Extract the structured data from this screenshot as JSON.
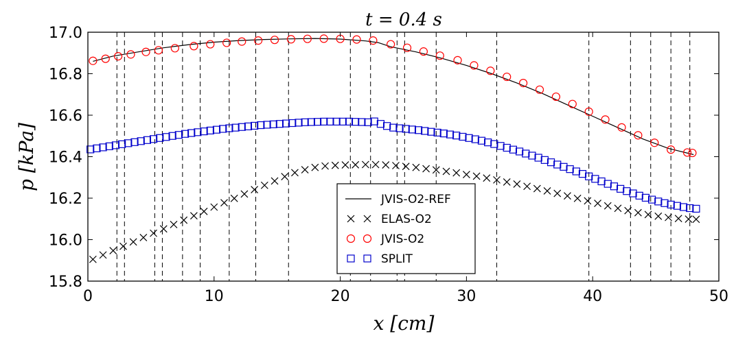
{
  "chart_data": {
    "type": "line",
    "title": "t = 0.4  s",
    "xlabel": "x [cm]",
    "ylabel": "p [kPa]",
    "xlim": [
      0,
      50
    ],
    "ylim": [
      15.8,
      17.0
    ],
    "xticks": [
      0,
      10,
      20,
      30,
      40,
      50
    ],
    "yticks": [
      15.8,
      16.0,
      16.2,
      16.4,
      16.6,
      16.8,
      17.0
    ],
    "xtick_labels": [
      "0",
      "10",
      "20",
      "30",
      "40",
      "50"
    ],
    "ytick_labels": [
      "15.8",
      "16.0",
      "16.2",
      "16.4",
      "16.6",
      "16.8",
      "17.0"
    ],
    "grid": false,
    "legend_position": "lower-center",
    "vlines": [
      2.3,
      2.9,
      5.3,
      5.9,
      7.5,
      8.9,
      11.2,
      13.3,
      15.9,
      20.8,
      22.4,
      24.5,
      25.1,
      27.6,
      32.4,
      39.7,
      43.0,
      44.6,
      46.2,
      47.7
    ],
    "series": [
      {
        "name": "JVIS-O2-REF",
        "marker": "line",
        "color": "#000000",
        "x": [
          0.4,
          2,
          4,
          6,
          8,
          10,
          12,
          14,
          16,
          18,
          20,
          22,
          23,
          24,
          26,
          28,
          30,
          32,
          34,
          36,
          38,
          40,
          42,
          44,
          46,
          48
        ],
        "y": [
          16.86,
          16.885,
          16.905,
          16.925,
          16.94,
          16.952,
          16.96,
          16.965,
          16.968,
          16.97,
          16.967,
          16.958,
          16.95,
          16.93,
          16.905,
          16.875,
          16.84,
          16.8,
          16.755,
          16.705,
          16.65,
          16.595,
          16.54,
          16.485,
          16.44,
          16.41
        ]
      },
      {
        "name": "ELAS-O2",
        "marker": "x",
        "color": "#000000",
        "x": [
          0.4,
          1.2,
          2.0,
          2.8,
          3.6,
          4.4,
          5.2,
          6.0,
          6.8,
          7.6,
          8.4,
          9.2,
          10.0,
          10.8,
          11.6,
          12.4,
          13.2,
          14.0,
          14.8,
          15.6,
          16.4,
          17.2,
          18.0,
          18.8,
          19.6,
          20.4,
          21.2,
          22.0,
          22.8,
          23.6,
          24.4,
          25.2,
          26.0,
          26.8,
          27.6,
          28.4,
          29.2,
          30.0,
          30.8,
          31.6,
          32.4,
          33.2,
          34.0,
          34.8,
          35.6,
          36.4,
          37.2,
          38.0,
          38.8,
          39.6,
          40.4,
          41.2,
          42.0,
          42.8,
          43.6,
          44.4,
          45.2,
          46.0,
          46.8,
          47.6,
          48.2
        ],
        "y": [
          15.905,
          15.926,
          15.947,
          15.968,
          15.989,
          16.01,
          16.031,
          16.052,
          16.073,
          16.094,
          16.115,
          16.136,
          16.157,
          16.178,
          16.199,
          16.22,
          16.241,
          16.262,
          16.283,
          16.304,
          16.323,
          16.337,
          16.348,
          16.355,
          16.358,
          16.36,
          16.361,
          16.362,
          16.362,
          16.36,
          16.357,
          16.353,
          16.348,
          16.342,
          16.336,
          16.329,
          16.322,
          16.314,
          16.306,
          16.297,
          16.288,
          16.278,
          16.268,
          16.257,
          16.246,
          16.235,
          16.223,
          16.211,
          16.199,
          16.187,
          16.175,
          16.163,
          16.151,
          16.14,
          16.13,
          16.121,
          16.113,
          16.107,
          16.102,
          16.099,
          16.098
        ]
      },
      {
        "name": "JVIS-O2",
        "marker": "circle",
        "color": "#ff0000",
        "x": [
          0.4,
          1.4,
          2.4,
          3.4,
          4.6,
          5.6,
          6.9,
          8.4,
          9.7,
          11.0,
          12.2,
          13.5,
          14.8,
          16.1,
          17.4,
          18.7,
          20.0,
          21.3,
          22.6,
          24.0,
          25.3,
          26.6,
          27.9,
          29.3,
          30.6,
          31.9,
          33.2,
          34.5,
          35.8,
          37.1,
          38.4,
          39.7,
          41.0,
          42.3,
          43.6,
          44.9,
          46.2,
          47.5,
          47.9
        ],
        "y": [
          16.862,
          16.872,
          16.884,
          16.893,
          16.905,
          16.913,
          16.923,
          16.933,
          16.942,
          16.949,
          16.955,
          16.96,
          16.963,
          16.966,
          16.968,
          16.969,
          16.968,
          16.965,
          16.96,
          16.942,
          16.925,
          16.907,
          16.887,
          16.865,
          16.84,
          16.814,
          16.785,
          16.755,
          16.723,
          16.689,
          16.654,
          16.617,
          16.579,
          16.541,
          16.503,
          16.467,
          16.434,
          16.42,
          16.418
        ]
      },
      {
        "name": "SPLIT",
        "marker": "square",
        "color": "#0000cc",
        "x": [
          0.2,
          0.7,
          1.2,
          1.7,
          2.2,
          2.7,
          3.2,
          3.7,
          4.2,
          4.7,
          5.2,
          5.7,
          6.2,
          6.7,
          7.2,
          7.7,
          8.2,
          8.7,
          9.2,
          9.7,
          10.2,
          10.7,
          11.2,
          11.7,
          12.2,
          12.7,
          13.2,
          13.7,
          14.2,
          14.7,
          15.2,
          15.7,
          16.2,
          16.7,
          17.2,
          17.7,
          18.2,
          18.7,
          19.2,
          19.7,
          20.2,
          20.7,
          21.2,
          21.7,
          22.2,
          22.7,
          23.2,
          23.7,
          24.2,
          24.7,
          25.2,
          25.7,
          26.2,
          26.7,
          27.2,
          27.7,
          28.2,
          28.7,
          29.2,
          29.7,
          30.2,
          30.7,
          31.2,
          31.7,
          32.2,
          32.7,
          33.2,
          33.7,
          34.2,
          34.7,
          35.2,
          35.7,
          36.2,
          36.7,
          37.2,
          37.7,
          38.2,
          38.7,
          39.2,
          39.7,
          40.2,
          40.7,
          41.2,
          41.7,
          42.2,
          42.7,
          43.2,
          43.7,
          44.2,
          44.7,
          45.2,
          45.7,
          46.2,
          46.7,
          47.2,
          47.7,
          48.2
        ],
        "y": [
          16.435,
          16.44,
          16.445,
          16.45,
          16.455,
          16.46,
          16.465,
          16.47,
          16.475,
          16.48,
          16.485,
          16.49,
          16.495,
          16.5,
          16.505,
          16.51,
          16.514,
          16.518,
          16.522,
          16.526,
          16.53,
          16.534,
          16.537,
          16.54,
          16.543,
          16.546,
          16.549,
          16.552,
          16.554,
          16.556,
          16.558,
          16.56,
          16.562,
          16.564,
          16.566,
          16.567,
          16.568,
          16.569,
          16.569,
          16.569,
          16.569,
          16.569,
          16.568,
          16.567,
          16.566,
          16.57,
          16.558,
          16.548,
          16.54,
          16.537,
          16.534,
          16.531,
          16.528,
          16.524,
          16.52,
          16.516,
          16.512,
          16.507,
          16.502,
          16.496,
          16.49,
          16.484,
          16.477,
          16.469,
          16.461,
          16.452,
          16.443,
          16.434,
          16.425,
          16.415,
          16.405,
          16.395,
          16.384,
          16.373,
          16.362,
          16.351,
          16.34,
          16.329,
          16.317,
          16.305,
          16.293,
          16.281,
          16.269,
          16.257,
          16.245,
          16.234,
          16.223,
          16.212,
          16.202,
          16.193,
          16.184,
          16.176,
          16.169,
          16.163,
          16.157,
          16.152,
          16.149
        ]
      }
    ]
  }
}
